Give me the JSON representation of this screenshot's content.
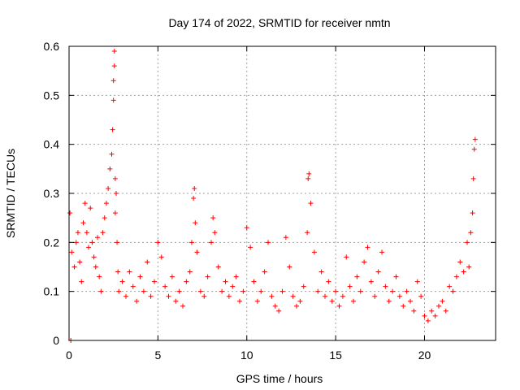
{
  "chart_data": {
    "type": "scatter",
    "title": "Day 174 of 2022, SRMTID for receiver nmtn",
    "xlabel": "GPS time / hours",
    "ylabel": "SRMTID / TECUs",
    "xlim": [
      0,
      24
    ],
    "ylim": [
      0,
      0.6
    ],
    "x_ticks": [
      0,
      5,
      10,
      15,
      20
    ],
    "y_ticks": [
      0,
      0.1,
      0.2,
      0.3,
      0.4,
      0.5,
      0.6
    ],
    "grid": true,
    "legend": "none",
    "marker": "+",
    "series": [
      {
        "name": "SRMTID",
        "color": "#ff0000",
        "x": [
          0.05,
          0.1,
          0.15,
          0.3,
          0.4,
          0.5,
          0.6,
          0.7,
          0.8,
          0.9,
          1.0,
          1.1,
          1.2,
          1.3,
          1.4,
          1.5,
          1.6,
          1.7,
          1.8,
          1.9,
          2.0,
          2.1,
          2.2,
          2.3,
          2.4,
          2.45,
          2.5,
          2.5,
          2.55,
          2.55,
          2.6,
          2.6,
          2.65,
          2.7,
          2.75,
          2.8,
          3.0,
          3.2,
          3.4,
          3.6,
          3.8,
          4.0,
          4.2,
          4.4,
          4.6,
          4.8,
          5.0,
          5.2,
          5.4,
          5.6,
          5.8,
          6.0,
          6.2,
          6.4,
          6.6,
          6.8,
          6.9,
          7.0,
          7.05,
          7.1,
          7.2,
          7.4,
          7.6,
          7.8,
          8.0,
          8.1,
          8.2,
          8.4,
          8.6,
          8.8,
          9.0,
          9.2,
          9.4,
          9.6,
          9.8,
          10.0,
          10.2,
          10.4,
          10.6,
          10.8,
          11.0,
          11.2,
          11.4,
          11.6,
          11.8,
          12.0,
          12.2,
          12.4,
          12.6,
          12.8,
          13.0,
          13.2,
          13.4,
          13.45,
          13.5,
          13.6,
          13.8,
          14.0,
          14.2,
          14.4,
          14.6,
          14.8,
          15.0,
          15.2,
          15.4,
          15.6,
          15.8,
          16.0,
          16.2,
          16.4,
          16.6,
          16.8,
          17.0,
          17.2,
          17.4,
          17.6,
          17.8,
          18.0,
          18.2,
          18.4,
          18.6,
          18.8,
          19.0,
          19.2,
          19.4,
          19.6,
          19.8,
          20.0,
          20.2,
          20.4,
          20.6,
          20.8,
          21.0,
          21.2,
          21.4,
          21.6,
          21.8,
          22.0,
          22.2,
          22.4,
          22.5,
          22.6,
          22.7,
          22.75,
          22.8,
          22.85
        ],
        "y": [
          0.26,
          0.0,
          0.18,
          0.15,
          0.2,
          0.22,
          0.16,
          0.12,
          0.24,
          0.28,
          0.22,
          0.19,
          0.27,
          0.2,
          0.17,
          0.15,
          0.21,
          0.13,
          0.1,
          0.22,
          0.25,
          0.28,
          0.31,
          0.35,
          0.38,
          0.43,
          0.49,
          0.53,
          0.56,
          0.59,
          0.33,
          0.26,
          0.3,
          0.2,
          0.14,
          0.1,
          0.12,
          0.09,
          0.14,
          0.11,
          0.08,
          0.13,
          0.1,
          0.16,
          0.09,
          0.12,
          0.2,
          0.17,
          0.11,
          0.09,
          0.13,
          0.08,
          0.1,
          0.07,
          0.12,
          0.14,
          0.2,
          0.29,
          0.31,
          0.24,
          0.18,
          0.1,
          0.09,
          0.13,
          0.2,
          0.25,
          0.22,
          0.15,
          0.1,
          0.12,
          0.09,
          0.11,
          0.13,
          0.08,
          0.1,
          0.23,
          0.19,
          0.12,
          0.08,
          0.1,
          0.14,
          0.2,
          0.09,
          0.07,
          0.06,
          0.1,
          0.21,
          0.15,
          0.09,
          0.07,
          0.08,
          0.11,
          0.22,
          0.33,
          0.34,
          0.28,
          0.18,
          0.1,
          0.14,
          0.09,
          0.12,
          0.08,
          0.1,
          0.07,
          0.09,
          0.17,
          0.11,
          0.08,
          0.13,
          0.1,
          0.16,
          0.19,
          0.12,
          0.09,
          0.14,
          0.18,
          0.11,
          0.08,
          0.1,
          0.13,
          0.09,
          0.07,
          0.1,
          0.08,
          0.06,
          0.12,
          0.09,
          0.05,
          0.04,
          0.06,
          0.05,
          0.07,
          0.08,
          0.06,
          0.11,
          0.1,
          0.13,
          0.16,
          0.14,
          0.2,
          0.15,
          0.22,
          0.26,
          0.33,
          0.39,
          0.41
        ]
      }
    ]
  }
}
